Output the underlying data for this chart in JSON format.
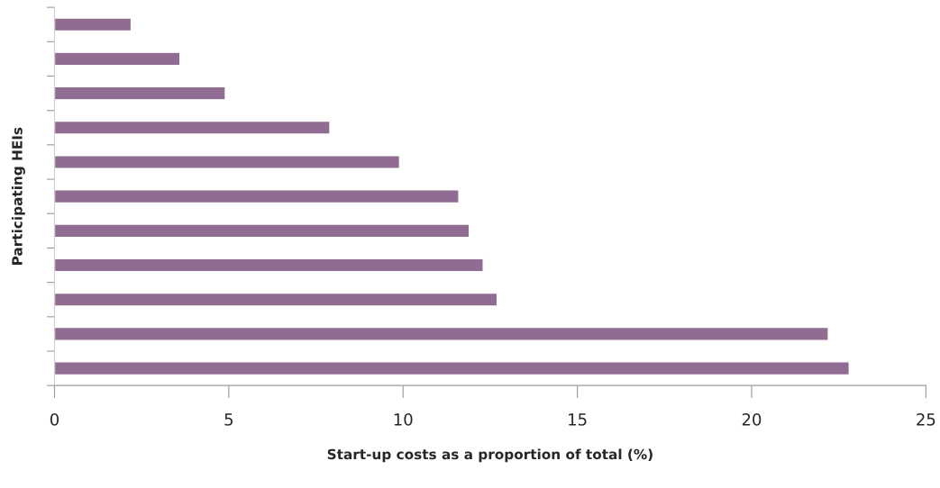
{
  "chart_data": {
    "type": "bar",
    "orientation": "horizontal",
    "xlabel": "Start-up costs as a proportion of total (%)",
    "ylabel": "Participating HEIs",
    "categories": [
      null,
      null,
      null,
      null,
      null,
      null,
      null,
      null,
      null,
      null,
      null
    ],
    "values": [
      2.2,
      3.6,
      4.9,
      7.9,
      9.9,
      11.6,
      11.9,
      12.3,
      12.7,
      22.2,
      22.8
    ],
    "color": "#916c92",
    "xlim": [
      0,
      25
    ],
    "xticks": [
      0,
      5,
      10,
      15,
      20,
      25
    ],
    "grid": false,
    "legend": false
  }
}
